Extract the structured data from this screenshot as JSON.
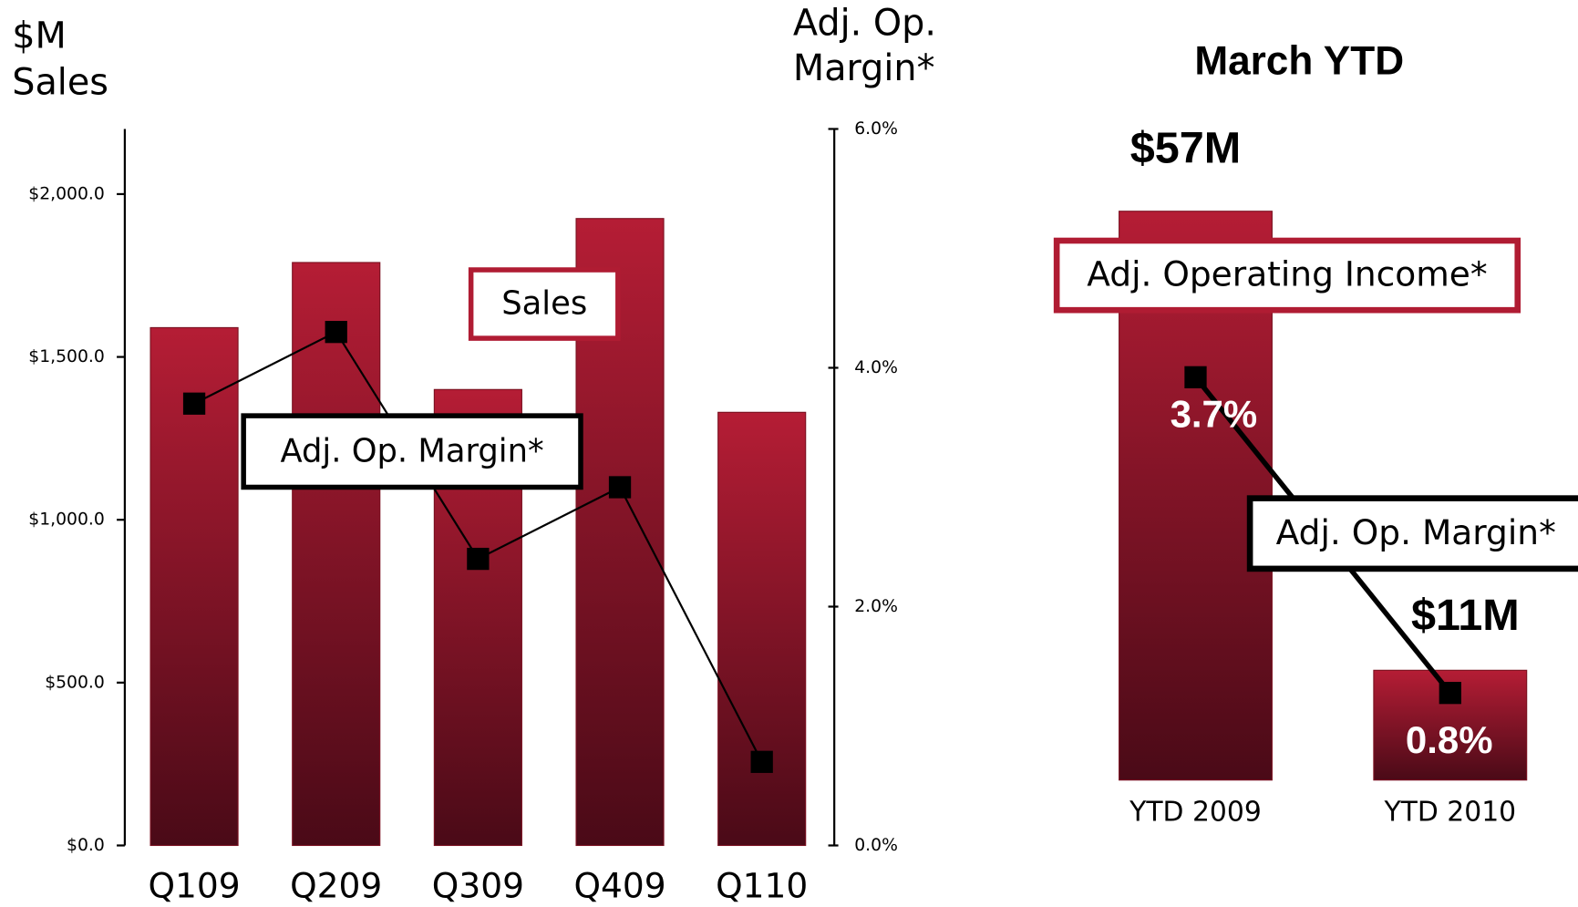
{
  "chart_data": [
    {
      "type": "bar_line",
      "ylabel_lines": [
        "$M",
        "Sales"
      ],
      "y2label_lines": [
        "Adj. Op.",
        "Margin*"
      ],
      "categories": [
        "Q109",
        "Q209",
        "Q309",
        "Q409",
        "Q110"
      ],
      "series": [
        {
          "name": "Sales",
          "color": "#b01c33",
          "values": [
            1590,
            1790,
            1400,
            1925,
            1330
          ]
        },
        {
          "name": "Adj. Op. Margin*",
          "color": "#000000",
          "axis": "y2",
          "values": [
            3.7,
            4.3,
            2.4,
            3.0,
            0.7
          ]
        }
      ],
      "ylim": [
        0,
        2200
      ],
      "yticks": [
        {
          "value": 0,
          "label": "$0.0"
        },
        {
          "value": 500,
          "label": "$500.0"
        },
        {
          "value": 1000,
          "label": "$1,000.0"
        },
        {
          "value": 1500,
          "label": "$1,500.0"
        },
        {
          "value": 2000,
          "label": "$2,000.0"
        }
      ],
      "y2lim": [
        0,
        6
      ],
      "y2ticks": [
        {
          "value": 0,
          "label": "0.0%"
        },
        {
          "value": 2,
          "label": "2.0%"
        },
        {
          "value": 4,
          "label": "4.0%"
        },
        {
          "value": 6,
          "label": "6.0%"
        }
      ]
    },
    {
      "type": "bar_line",
      "title": "March YTD",
      "categories": [
        "YTD 2009",
        "YTD 2010"
      ],
      "series": [
        {
          "name": "Adj. Operating Income*",
          "color": "#b01c33",
          "values": [
            57,
            11
          ],
          "value_labels": [
            "$57M",
            "$11M"
          ]
        },
        {
          "name": "Adj. Op. Margin*",
          "color": "#000000",
          "axis": "y2",
          "values": [
            3.7,
            0.8
          ],
          "value_labels": [
            "3.7%",
            "0.8%"
          ]
        }
      ],
      "ylim": [
        0,
        60
      ],
      "y2lim": [
        0,
        5.5
      ]
    }
  ]
}
